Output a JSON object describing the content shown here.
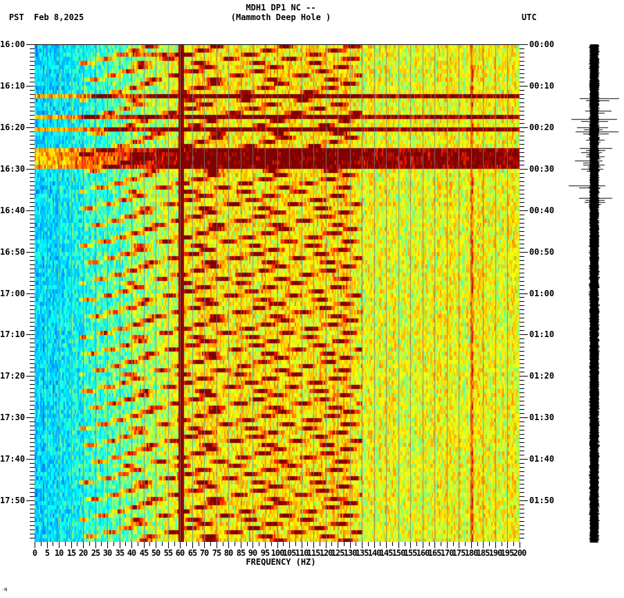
{
  "header": {
    "title_line1": "MDH1 DP1 NC --",
    "title_line2": "(Mammoth Deep Hole )",
    "left_timezone": "PST",
    "date": "Feb 8,2025",
    "right_timezone": "UTC"
  },
  "footer": {
    "mark": "·H"
  },
  "chart_data": {
    "type": "heatmap",
    "title": "MDH1 DP1 NC -- (Mammoth Deep Hole )",
    "xlabel": "FREQUENCY (HZ)",
    "ylabel_left": "PST",
    "ylabel_right": "UTC",
    "date": "Feb 8,2025",
    "xlim": [
      0,
      200
    ],
    "x_ticks": [
      "0",
      "5",
      "10",
      "15",
      "20",
      "25",
      "30",
      "35",
      "40",
      "45",
      "50",
      "55",
      "60",
      "65",
      "70",
      "75",
      "80",
      "85",
      "90",
      "95",
      "100",
      "105",
      "110",
      "115",
      "120",
      "125",
      "130",
      "135",
      "140",
      "145",
      "150",
      "155",
      "160",
      "165",
      "170",
      "175",
      "180",
      "185",
      "190",
      "195",
      "200"
    ],
    "y_range_pst": [
      "16:00",
      "18:00"
    ],
    "y_ticks_left": [
      "16:00",
      "16:10",
      "16:20",
      "16:30",
      "16:40",
      "16:50",
      "17:00",
      "17:10",
      "17:20",
      "17:30",
      "17:40",
      "17:50"
    ],
    "y_ticks_right": [
      "00:00",
      "00:10",
      "00:20",
      "00:30",
      "00:40",
      "00:50",
      "01:00",
      "01:10",
      "01:20",
      "01:30",
      "01:40",
      "01:50"
    ],
    "minor_ticks_per_major": 10,
    "grid_vertical_hz_every": 5,
    "colormap": [
      "#0050ff",
      "#00b4ff",
      "#00ffff",
      "#80ff80",
      "#ffff00",
      "#ffa000",
      "#ff2000",
      "#800000"
    ],
    "features": {
      "persistent_line_hz": 60,
      "secondary_line_hz": 180,
      "low_freq_quiet_band_hz": [
        0,
        25
      ],
      "high_amplitude_bands_pst": [
        {
          "from": "16:12",
          "to": "16:13"
        },
        {
          "from": "16:17",
          "to": "16:18"
        },
        {
          "from": "16:20",
          "to": "16:21"
        },
        {
          "from": "16:25",
          "to": "16:30"
        }
      ],
      "chirp_sweeps": "repeated curved harmonic sweeps from ~20-45 Hz rising to ~130 Hz, period ~4-5 min"
    },
    "seismogram": {
      "position": "right of spectrogram",
      "large_spikes_pst": [
        "16:13",
        "16:16",
        "16:18",
        "16:20",
        "16:21",
        "16:23",
        "16:25",
        "16:26",
        "16:27",
        "16:28",
        "16:29",
        "16:30",
        "16:34",
        "16:37",
        "16:38"
      ]
    }
  }
}
